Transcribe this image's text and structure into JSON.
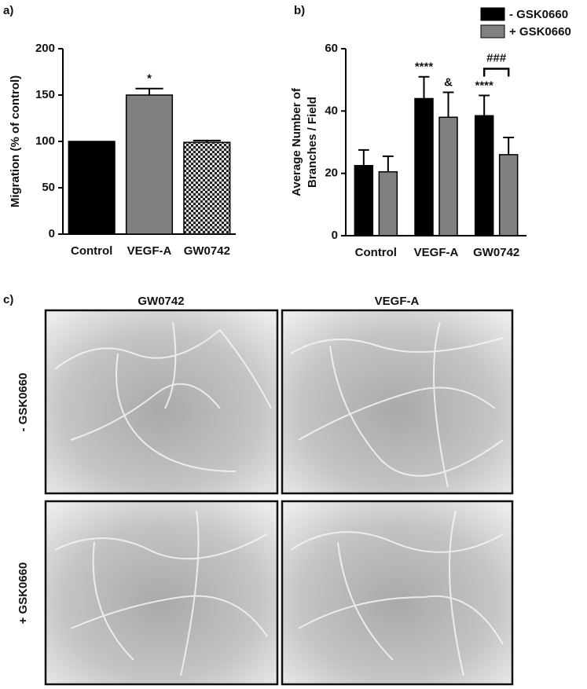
{
  "chart_data": [
    {
      "type": "bar",
      "label": "a)",
      "y_label": [
        "Migration (% of control)"
      ],
      "categories": [
        "Control",
        "VEGF-A",
        "GW0742"
      ],
      "values": [
        100,
        150,
        99
      ],
      "errors": [
        null,
        7,
        2
      ],
      "colors": [
        "#000000",
        "#808080",
        "#555555"
      ],
      "checkered": [
        false,
        false,
        true
      ],
      "value_annotations": [
        null,
        "*",
        null
      ],
      "ylim": [
        0,
        200
      ],
      "yticks": [
        0,
        50,
        100,
        150,
        200
      ]
    },
    {
      "type": "bar",
      "label": "b)",
      "y_label": [
        "Average Number of",
        "Branches / Field"
      ],
      "categories": [
        "Control",
        "VEGF-A",
        "GW0742"
      ],
      "series": [
        {
          "name": "- GSK0660",
          "color": "#000000",
          "values": [
            22.5,
            44,
            38.5
          ],
          "errors": [
            5,
            7,
            6.5
          ],
          "value_annotations": [
            null,
            "****",
            "****"
          ]
        },
        {
          "name": "+ GSK0660",
          "color": "#808080",
          "values": [
            20.5,
            38,
            26
          ],
          "errors": [
            5,
            8,
            5.5
          ],
          "value_annotations": [
            null,
            "&",
            null
          ]
        }
      ],
      "bracket_annotation": {
        "text": "###",
        "category": "GW0742"
      },
      "legend": "top-right",
      "ylim": [
        0,
        60
      ],
      "yticks": [
        0,
        20,
        40,
        60
      ]
    }
  ],
  "panel_c": {
    "label": "c)",
    "columns": [
      "GW0742",
      "VEGF-A"
    ],
    "rows": [
      "- GSK0660",
      "+ GSK0660"
    ]
  }
}
